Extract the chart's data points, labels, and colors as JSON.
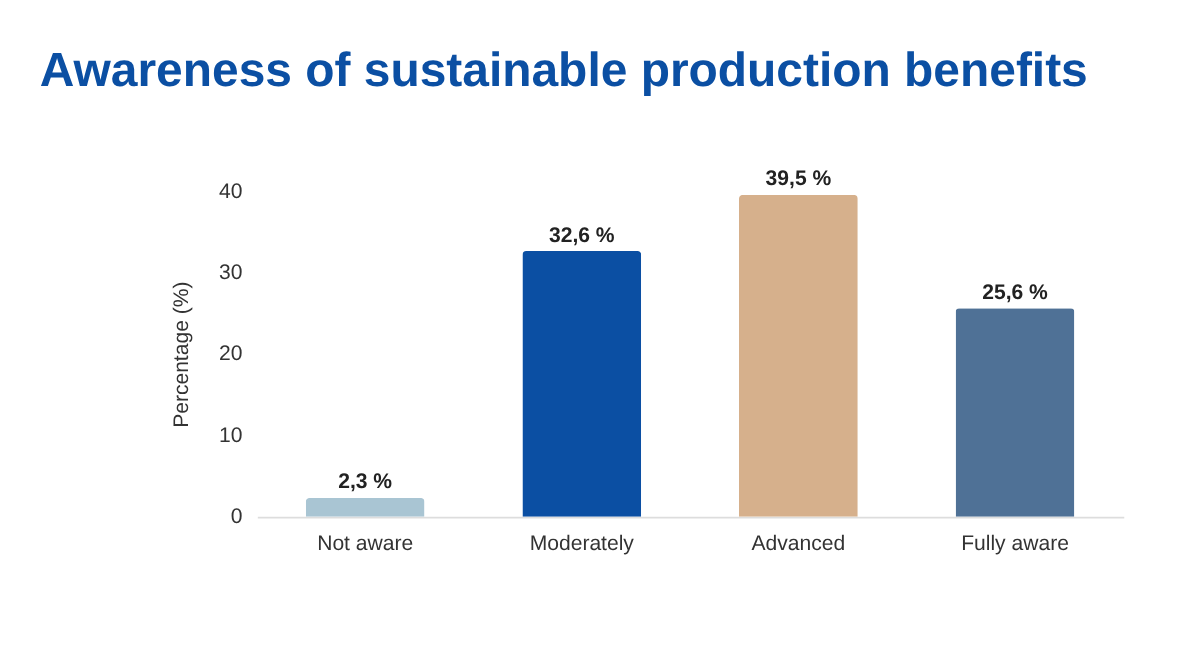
{
  "chart_data": {
    "type": "bar",
    "title": "Awareness of sustainable production benefits",
    "ylabel": "Percentage (%)",
    "categories": [
      "Not aware",
      "Moderately",
      "Advanced",
      "Fully aware"
    ],
    "values": [
      2.3,
      32.6,
      39.5,
      25.6
    ],
    "colors": [
      "#a9c5d3",
      "#0b4fa3",
      "#d6b08c",
      "#4f7196"
    ],
    "value_labels": [
      "2,3 %",
      "32,6 %",
      "39,5 %",
      "25,6 %"
    ],
    "ylim": [
      0,
      40
    ],
    "yticks": [
      0,
      10,
      20,
      30,
      40
    ],
    "grid": false
  }
}
